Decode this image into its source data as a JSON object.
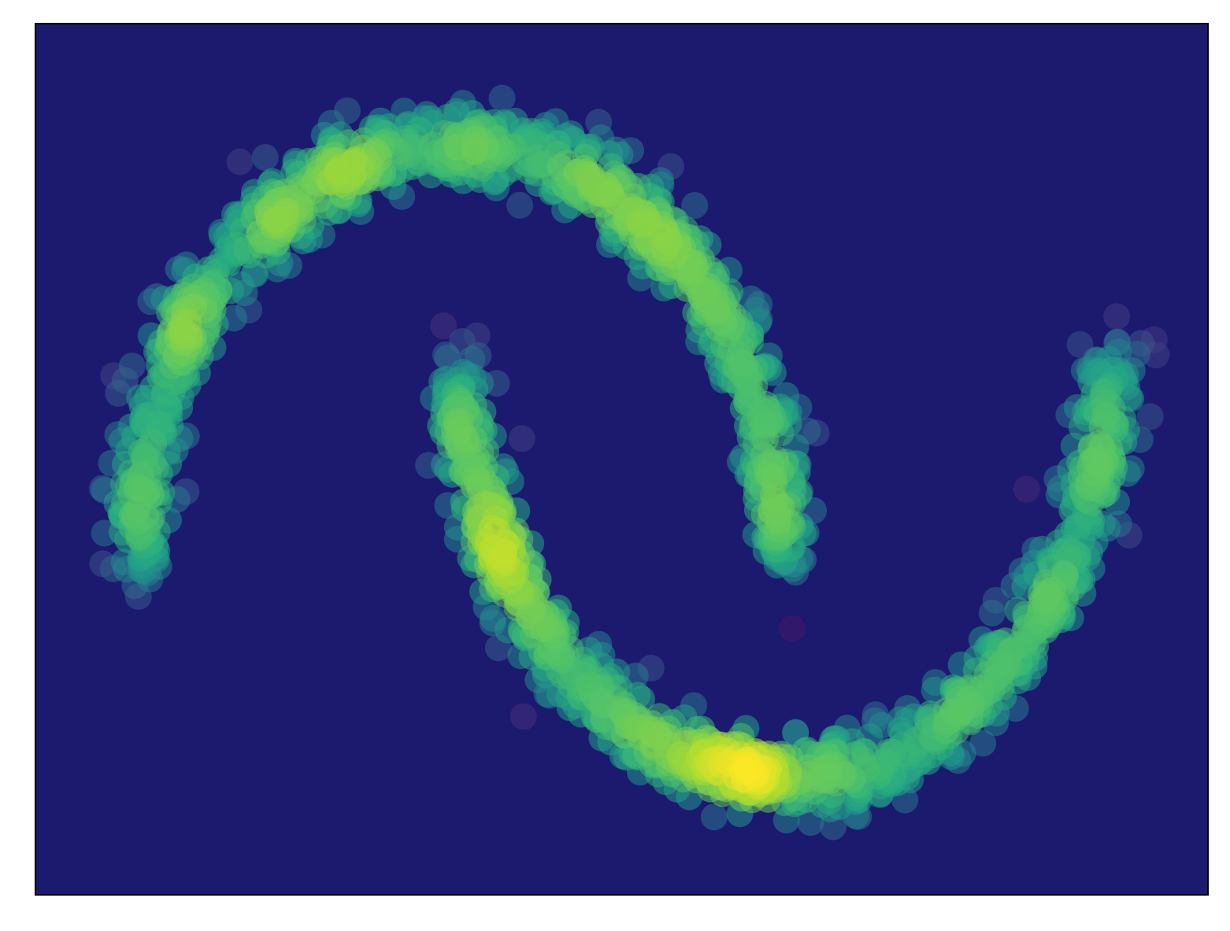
{
  "chart_data": {
    "type": "scatter",
    "title": "",
    "xlabel": "",
    "ylabel": "",
    "xlim": [
      -1.3,
      2.3
    ],
    "ylim": [
      -0.78,
      1.28
    ],
    "grid": false,
    "legend": "none",
    "xticks": [],
    "yticks": [],
    "colormap": "viridis",
    "background_color": "#1b1a6f",
    "frame_color": "#000000",
    "marker_alpha": 0.55,
    "series": [
      {
        "shape": "upper-crescent",
        "center": [
          0,
          0
        ],
        "radius": 1.0,
        "theta_range_deg": [
          0,
          180
        ],
        "noise_sd": 0.05,
        "density_peaks_x": [
          -0.97,
          -0.86,
          -0.69,
          -0.3,
          0.35,
          0.68,
          0.92,
          0.99
        ]
      },
      {
        "shape": "lower-crescent",
        "center": [
          1,
          0.5
        ],
        "radius": 1.0,
        "theta_range_deg": [
          180,
          360
        ],
        "noise_sd": 0.05,
        "density_peaks_x": [
          0.01,
          0.13,
          0.42,
          0.98,
          1.56,
          1.78,
          1.92,
          2.0
        ]
      }
    ]
  }
}
